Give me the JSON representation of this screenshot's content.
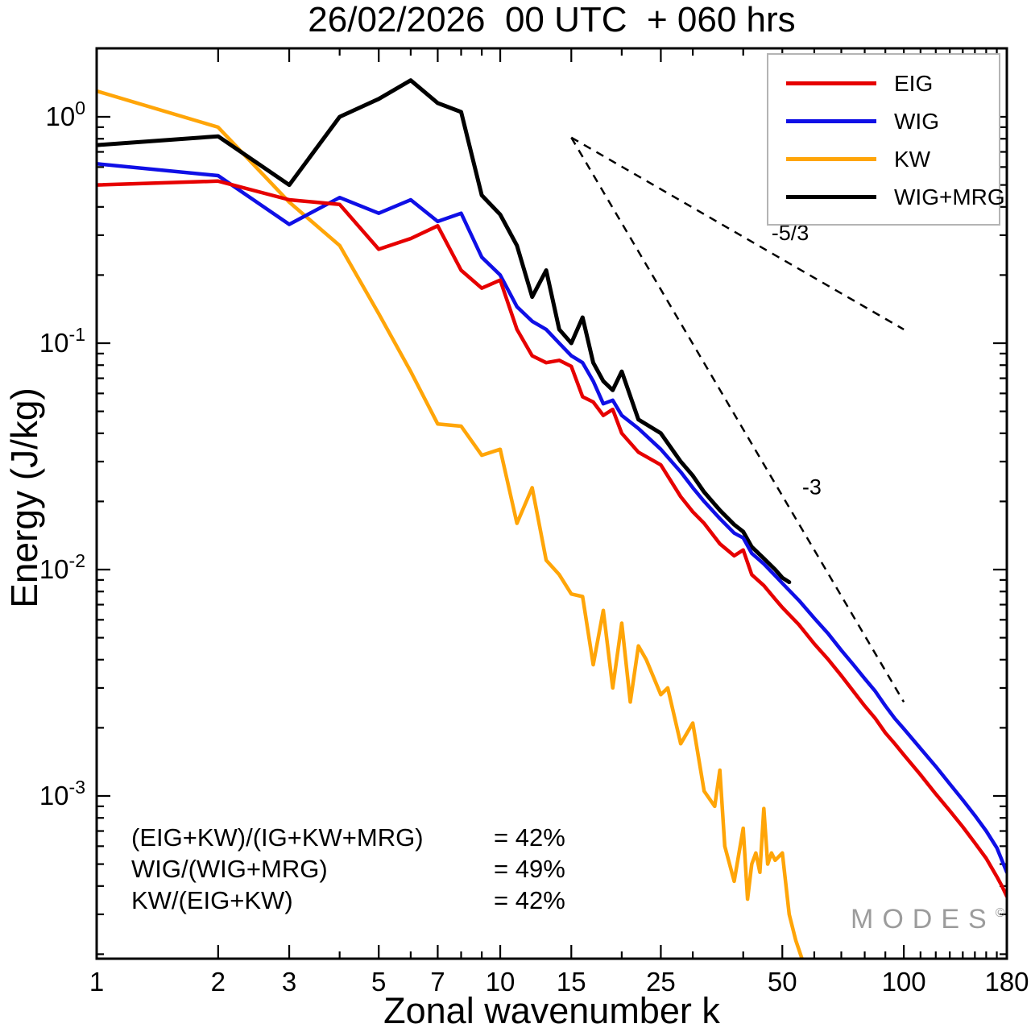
{
  "watermark": {
    "text": "MODES",
    "sup": "©"
  },
  "annotations": {
    "rows": [
      {
        "formula": "(EIG+KW)/(IG+KW+MRG)",
        "value": "= 42%"
      },
      {
        "formula": "WIG/(WIG+MRG)",
        "value": "= 49%"
      },
      {
        "formula": "KW/(EIG+KW)",
        "value": "= 42%"
      }
    ]
  },
  "chart_data": {
    "type": "line",
    "title": "26/02/2026  00 UTC  + 060 hrs",
    "xlabel": "Zonal wavenumber k",
    "ylabel": "Energy (J/kg)",
    "xscale": "log",
    "yscale": "log",
    "xlim": [
      1,
      180
    ],
    "ylim": [
      0.0002,
      2
    ],
    "grid": false,
    "legend_position": "top-right",
    "xticks": {
      "major": [
        1,
        2,
        3,
        5,
        7,
        10,
        15,
        25,
        50,
        100,
        180
      ],
      "minor": [
        4,
        6,
        8,
        9,
        20,
        30,
        40,
        60,
        70,
        80,
        90,
        110,
        120,
        130,
        140,
        150,
        160,
        170
      ]
    },
    "yticks": {
      "major_exponents": [
        0,
        -1,
        -2,
        -3
      ]
    },
    "reference_lines": [
      {
        "label": "-5/3",
        "from": [
          15,
          0.81
        ],
        "to": [
          100,
          0.115
        ],
        "label_at": [
          47,
          0.285
        ]
      },
      {
        "label": "-3",
        "from": [
          15,
          0.81
        ],
        "to": [
          100,
          0.0026
        ],
        "label_at": [
          56,
          0.0215
        ]
      }
    ],
    "series": [
      {
        "name": "EIG",
        "color": "#e60000",
        "points": [
          [
            1,
            0.5
          ],
          [
            2,
            0.52
          ],
          [
            3,
            0.43
          ],
          [
            4,
            0.41
          ],
          [
            5,
            0.26
          ],
          [
            6,
            0.29
          ],
          [
            7,
            0.33
          ],
          [
            8,
            0.21
          ],
          [
            9,
            0.175
          ],
          [
            10,
            0.19
          ],
          [
            11,
            0.115
          ],
          [
            12,
            0.088
          ],
          [
            13,
            0.082
          ],
          [
            14,
            0.084
          ],
          [
            15,
            0.079
          ],
          [
            16,
            0.058
          ],
          [
            17,
            0.055
          ],
          [
            18,
            0.048
          ],
          [
            19,
            0.051
          ],
          [
            20,
            0.04
          ],
          [
            22,
            0.033
          ],
          [
            25,
            0.029
          ],
          [
            28,
            0.021
          ],
          [
            30,
            0.018
          ],
          [
            32,
            0.016
          ],
          [
            35,
            0.013
          ],
          [
            38,
            0.0115
          ],
          [
            40,
            0.0122
          ],
          [
            42,
            0.0095
          ],
          [
            45,
            0.0085
          ],
          [
            48,
            0.0074
          ],
          [
            50,
            0.0068
          ],
          [
            55,
            0.0057
          ],
          [
            60,
            0.0047
          ],
          [
            65,
            0.004
          ],
          [
            70,
            0.0034
          ],
          [
            75,
            0.0029
          ],
          [
            80,
            0.0025
          ],
          [
            85,
            0.0022
          ],
          [
            90,
            0.0019
          ],
          [
            95,
            0.0017
          ],
          [
            100,
            0.00152
          ],
          [
            110,
            0.00124
          ],
          [
            120,
            0.00102
          ],
          [
            130,
            0.00086
          ],
          [
            140,
            0.00073
          ],
          [
            150,
            0.00062
          ],
          [
            160,
            0.00053
          ],
          [
            170,
            0.00044
          ],
          [
            175,
            0.0004
          ],
          [
            180,
            0.00036
          ]
        ]
      },
      {
        "name": "WIG",
        "color": "#0f0fe6",
        "points": [
          [
            1,
            0.62
          ],
          [
            2,
            0.55
          ],
          [
            3,
            0.335
          ],
          [
            4,
            0.44
          ],
          [
            5,
            0.375
          ],
          [
            6,
            0.43
          ],
          [
            7,
            0.345
          ],
          [
            8,
            0.375
          ],
          [
            9,
            0.24
          ],
          [
            10,
            0.2
          ],
          [
            11,
            0.145
          ],
          [
            12,
            0.125
          ],
          [
            13,
            0.115
          ],
          [
            14,
            0.1
          ],
          [
            15,
            0.088
          ],
          [
            16,
            0.082
          ],
          [
            17,
            0.068
          ],
          [
            18,
            0.054
          ],
          [
            19,
            0.056
          ],
          [
            20,
            0.048
          ],
          [
            22,
            0.042
          ],
          [
            25,
            0.034
          ],
          [
            28,
            0.027
          ],
          [
            30,
            0.023
          ],
          [
            32,
            0.02
          ],
          [
            35,
            0.0168
          ],
          [
            38,
            0.0145
          ],
          [
            40,
            0.0138
          ],
          [
            42,
            0.0118
          ],
          [
            45,
            0.0106
          ],
          [
            48,
            0.0094
          ],
          [
            50,
            0.0087
          ],
          [
            55,
            0.0073
          ],
          [
            60,
            0.0061
          ],
          [
            65,
            0.0052
          ],
          [
            70,
            0.0044
          ],
          [
            75,
            0.0038
          ],
          [
            80,
            0.0033
          ],
          [
            85,
            0.0029
          ],
          [
            90,
            0.0025
          ],
          [
            95,
            0.0022
          ],
          [
            100,
            0.00198
          ],
          [
            110,
            0.00162
          ],
          [
            120,
            0.00135
          ],
          [
            130,
            0.00113
          ],
          [
            140,
            0.00096
          ],
          [
            150,
            0.00082
          ],
          [
            160,
            0.0007
          ],
          [
            170,
            0.00059
          ],
          [
            180,
            0.00046
          ]
        ]
      },
      {
        "name": "KW",
        "color": "#ffa508",
        "points": [
          [
            1,
            1.3
          ],
          [
            2,
            0.9
          ],
          [
            3,
            0.42
          ],
          [
            4,
            0.27
          ],
          [
            5,
            0.135
          ],
          [
            6,
            0.075
          ],
          [
            7,
            0.044
          ],
          [
            8,
            0.043
          ],
          [
            9,
            0.032
          ],
          [
            10,
            0.034
          ],
          [
            11,
            0.016
          ],
          [
            12,
            0.023
          ],
          [
            13,
            0.011
          ],
          [
            14,
            0.0095
          ],
          [
            15,
            0.0078
          ],
          [
            16,
            0.0076
          ],
          [
            17,
            0.0038
          ],
          [
            18,
            0.0066
          ],
          [
            19,
            0.003
          ],
          [
            20,
            0.0058
          ],
          [
            21,
            0.0026
          ],
          [
            22,
            0.0046
          ],
          [
            23,
            0.004
          ],
          [
            25,
            0.0028
          ],
          [
            26,
            0.003
          ],
          [
            28,
            0.0017
          ],
          [
            30,
            0.0021
          ],
          [
            32,
            0.00105
          ],
          [
            34,
            0.0009
          ],
          [
            35,
            0.0013
          ],
          [
            36,
            0.0006
          ],
          [
            38,
            0.00042
          ],
          [
            40,
            0.00072
          ],
          [
            41,
            0.00035
          ],
          [
            42,
            0.0005
          ],
          [
            43,
            0.00056
          ],
          [
            44,
            0.00046
          ],
          [
            45,
            0.00088
          ],
          [
            46,
            0.0005
          ],
          [
            47,
            0.00056
          ],
          [
            48,
            0.00052
          ],
          [
            50,
            0.00056
          ],
          [
            52,
            0.0003
          ],
          [
            54,
            0.00023
          ],
          [
            56,
            0.00019
          ]
        ]
      },
      {
        "name": "WIG+MRG",
        "color": "#000000",
        "points": [
          [
            1,
            0.75
          ],
          [
            2,
            0.82
          ],
          [
            3,
            0.5
          ],
          [
            4,
            1.0
          ],
          [
            5,
            1.2
          ],
          [
            6,
            1.45
          ],
          [
            7,
            1.15
          ],
          [
            8,
            1.05
          ],
          [
            9,
            0.45
          ],
          [
            10,
            0.37
          ],
          [
            11,
            0.27
          ],
          [
            12,
            0.16
          ],
          [
            13,
            0.21
          ],
          [
            14,
            0.115
          ],
          [
            15,
            0.1
          ],
          [
            16,
            0.13
          ],
          [
            17,
            0.082
          ],
          [
            18,
            0.068
          ],
          [
            19,
            0.062
          ],
          [
            20,
            0.075
          ],
          [
            22,
            0.046
          ],
          [
            25,
            0.04
          ],
          [
            28,
            0.03
          ],
          [
            30,
            0.026
          ],
          [
            32,
            0.022
          ],
          [
            35,
            0.0183
          ],
          [
            38,
            0.0158
          ],
          [
            40,
            0.0147
          ],
          [
            42,
            0.0126
          ],
          [
            45,
            0.0112
          ],
          [
            48,
            0.01
          ],
          [
            50,
            0.0092
          ],
          [
            52,
            0.0088
          ]
        ]
      }
    ]
  }
}
